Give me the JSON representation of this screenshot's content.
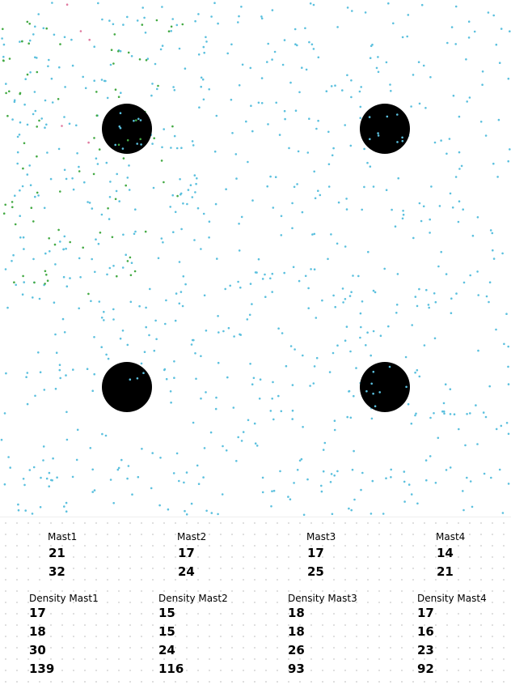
{
  "colors": {
    "background": "#ffffff",
    "mast": "#000000",
    "particle_primary": "#5bc0de",
    "particle_secondary": "#44aa44",
    "particle_tertiary": "#e07aa0"
  },
  "simulation": {
    "masts": [
      {
        "name": "mast-1"
      },
      {
        "name": "mast-2"
      },
      {
        "name": "mast-3"
      },
      {
        "name": "mast-4"
      }
    ]
  },
  "mast_stats": [
    {
      "label": "Mast1",
      "values": [
        "21",
        "32"
      ]
    },
    {
      "label": "Mast2",
      "values": [
        "17",
        "24"
      ]
    },
    {
      "label": "Mast3",
      "values": [
        "17",
        "25"
      ]
    },
    {
      "label": "Mast4",
      "values": [
        "14",
        "21"
      ]
    }
  ],
  "density_stats": [
    {
      "label": "Density Mast1",
      "values": [
        "17",
        "18",
        "30",
        "139"
      ]
    },
    {
      "label": "Density Mast2",
      "values": [
        "15",
        "15",
        "24",
        "116"
      ]
    },
    {
      "label": "Density Mast3",
      "values": [
        "18",
        "18",
        "26",
        "93"
      ]
    },
    {
      "label": "Density Mast4",
      "values": [
        "17",
        "16",
        "23",
        "92"
      ]
    }
  ]
}
